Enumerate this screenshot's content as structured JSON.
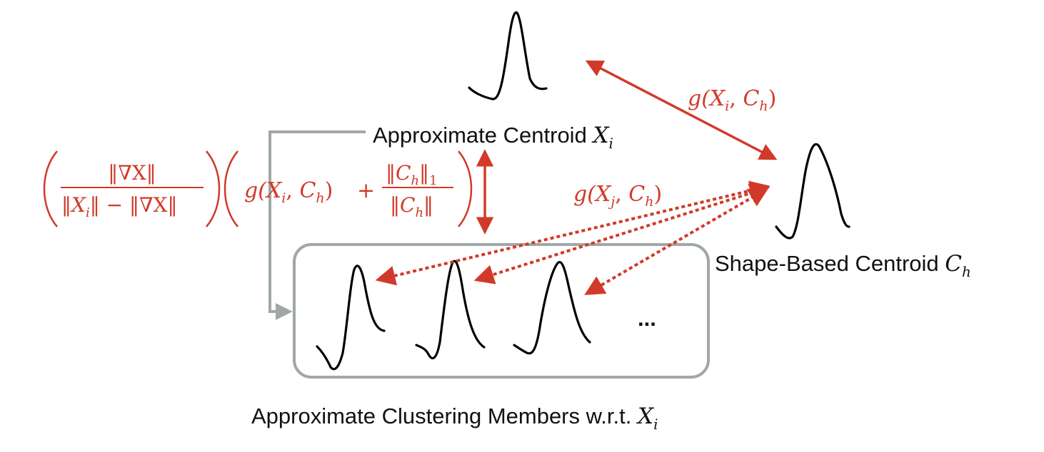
{
  "labels": {
    "approx_centroid": "Approximate Centroid X_i",
    "shape_centroid": "Shape-Based Centroid C_h",
    "members": "Approximate Clustering Members w.r.t. X_i",
    "ellipsis": "...",
    "dist_i": "g(X_i, C_h)",
    "dist_j": "g(X_j, C_h)",
    "formula": "(‖∇X‖ / (‖X_i‖ − ‖∇X‖)) (g(X_i, C_h) + ‖C_h‖_1 / ‖C_h‖)"
  },
  "display": {
    "approx_centroid_text": "Approximate Centroid ",
    "approx_centroid_var": "X",
    "approx_centroid_sub": "i",
    "shape_centroid_text": "Shape-Based Centroid ",
    "shape_centroid_var": "C",
    "shape_centroid_sub": "h",
    "members_text": "Approximate Clustering Members w.r.t. ",
    "members_var": "X",
    "members_sub": "i",
    "ellipsis": "...",
    "g": "g(",
    "X": "X",
    "C": "C",
    "sub_i": "i",
    "sub_j": "j",
    "sub_h": "h",
    "sub_1": "1",
    "comma": ", ",
    "close": ")",
    "num_left": "‖∇X‖",
    "den_left_a": "‖",
    "den_left_b": "‖ − ‖∇X‖",
    "num_right_a": "‖",
    "num_right_b": "‖",
    "den_right_a": "‖",
    "den_right_b": "‖",
    "plus": "+"
  },
  "colors": {
    "red": "#d13a2a",
    "gray": "#9fa8a5",
    "signal": "#000000"
  }
}
